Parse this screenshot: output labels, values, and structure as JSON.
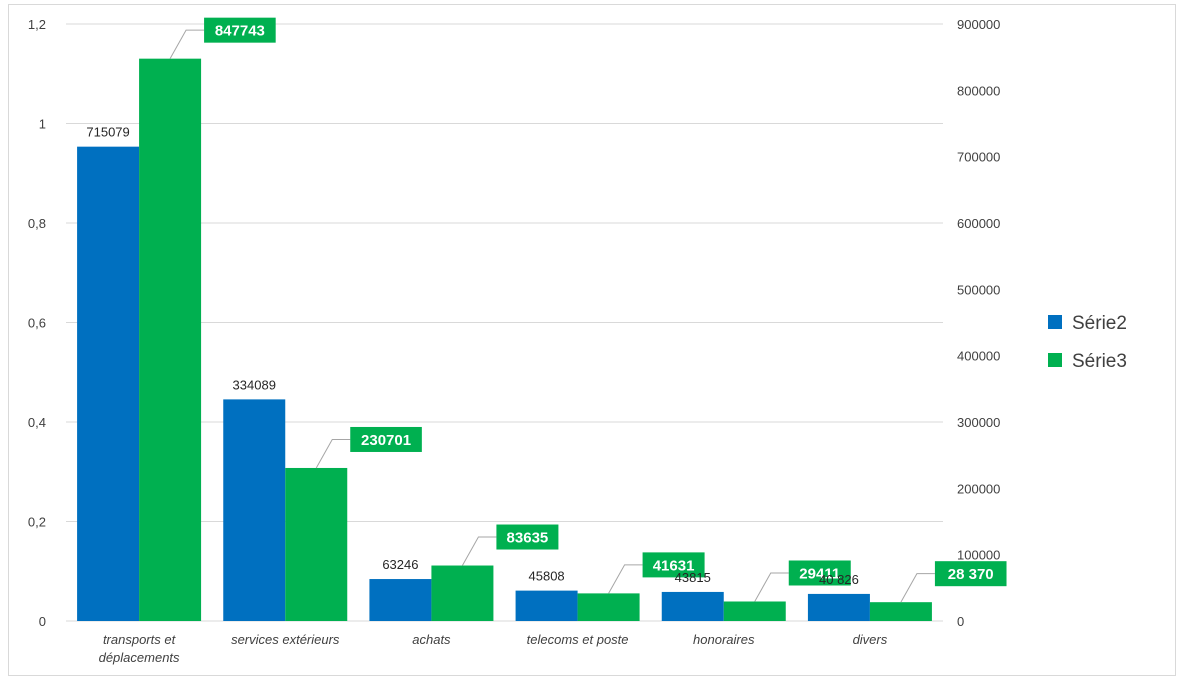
{
  "chart_data": {
    "type": "bar",
    "categories": [
      "transports et déplacements",
      "services extérieurs",
      "achats",
      "telecoms et poste",
      "honoraires",
      "divers"
    ],
    "category_lines": [
      [
        "transports et",
        "déplacements"
      ],
      [
        "services extérieurs"
      ],
      [
        "achats"
      ],
      [
        "telecoms et poste"
      ],
      [
        "honoraires"
      ],
      [
        "divers"
      ]
    ],
    "y_left": {
      "range": [
        0,
        1.2
      ],
      "ticks": [
        "0",
        "0,2",
        "0,4",
        "0,6",
        "0,8",
        "1",
        "1,2"
      ]
    },
    "y_right": {
      "range": [
        0,
        900000
      ],
      "ticks": [
        "0",
        "100000",
        "200000",
        "300000",
        "400000",
        "500000",
        "600000",
        "700000",
        "800000",
        "900000"
      ]
    },
    "series": [
      {
        "name": "Série2",
        "color": "#0070c0",
        "values": [
          715079,
          334089,
          63246,
          45808,
          43815,
          40826
        ],
        "labels": [
          "715079",
          "334089",
          "63246",
          "45808",
          "43815",
          "40 826"
        ]
      },
      {
        "name": "Série3",
        "color": "#00b050",
        "values": [
          847743,
          230701,
          83635,
          41631,
          29411,
          28370
        ],
        "labels": [
          "847743",
          "230701",
          "83635",
          "41631",
          "29411",
          "28 370"
        ]
      }
    ],
    "grid": true,
    "legend_position": "right"
  }
}
